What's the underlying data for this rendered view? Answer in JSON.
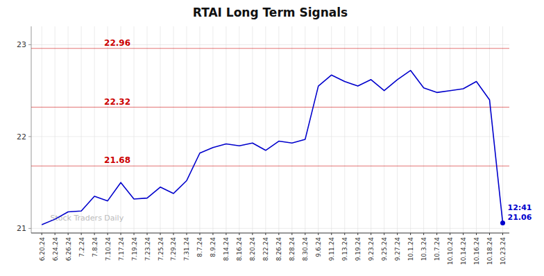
{
  "chart_data": {
    "type": "line",
    "title": "RTAI Long Term Signals",
    "categories": [
      "6.20.24",
      "6.24.24",
      "6.26.24",
      "7.2.24",
      "7.8.24",
      "7.10.24",
      "7.17.24",
      "7.19.24",
      "7.23.24",
      "7.25.24",
      "7.29.24",
      "7.31.24",
      "8.7.24",
      "8.9.24",
      "8.14.24",
      "8.16.24",
      "8.20.24",
      "8.22.24",
      "8.26.24",
      "8.28.24",
      "8.30.24",
      "9.6.24",
      "9.11.24",
      "9.13.24",
      "9.19.24",
      "9.23.24",
      "9.25.24",
      "9.27.24",
      "10.1.24",
      "10.3.24",
      "10.7.24",
      "10.10.24",
      "10.14.24",
      "10.16.24",
      "10.18.24",
      "10.23.24"
    ],
    "values": [
      21.04,
      21.1,
      21.18,
      21.19,
      21.35,
      21.3,
      21.5,
      21.32,
      21.33,
      21.45,
      21.38,
      21.52,
      21.82,
      21.88,
      21.92,
      21.9,
      21.93,
      21.85,
      21.95,
      21.93,
      21.97,
      22.55,
      22.67,
      22.6,
      22.55,
      22.62,
      22.5,
      22.62,
      22.72,
      22.53,
      22.48,
      22.5,
      22.52,
      22.6,
      22.4,
      21.06
    ],
    "color": "#0000cc",
    "reference_lines": [
      {
        "value": 22.96,
        "label": "22.96",
        "color": "#cc0000"
      },
      {
        "value": 22.32,
        "label": "22.32",
        "color": "#cc0000"
      },
      {
        "value": 21.68,
        "label": "21.68",
        "color": "#cc0000"
      }
    ],
    "annotations": [
      "12:41",
      "21.06"
    ],
    "watermark": "Stock Traders Daily",
    "ylim": [
      20.95,
      23.2
    ],
    "yticks": [
      21,
      22,
      23
    ],
    "grid": true
  }
}
